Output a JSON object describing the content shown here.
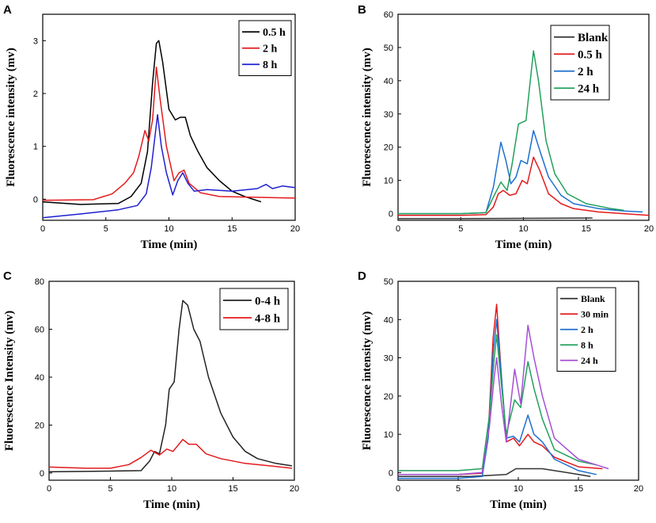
{
  "chart_data": [
    {
      "panel": "A",
      "type": "line",
      "xlabel": "Time (min)",
      "ylabel": "Fluorescence intensity (mv)",
      "xlim": [
        0,
        20
      ],
      "ylim": [
        -0.4,
        3.5
      ],
      "xticks": [
        0,
        5,
        10,
        15,
        20
      ],
      "yticks": [
        0,
        1,
        2,
        3
      ],
      "legend_position": "top-right",
      "series": [
        {
          "name": "0.5 h",
          "color": "#000000",
          "points": [
            [
              0,
              -0.05
            ],
            [
              3,
              -0.1
            ],
            [
              6,
              -0.08
            ],
            [
              7,
              0.05
            ],
            [
              7.8,
              0.3
            ],
            [
              8.3,
              0.9
            ],
            [
              8.7,
              2.2
            ],
            [
              9.0,
              2.95
            ],
            [
              9.2,
              3.0
            ],
            [
              9.5,
              2.6
            ],
            [
              10.0,
              1.7
            ],
            [
              10.5,
              1.5
            ],
            [
              10.9,
              1.55
            ],
            [
              11.3,
              1.55
            ],
            [
              11.7,
              1.2
            ],
            [
              12.3,
              0.9
            ],
            [
              13,
              0.6
            ],
            [
              14,
              0.35
            ],
            [
              15,
              0.15
            ],
            [
              16,
              0.05
            ],
            [
              17.3,
              -0.05
            ]
          ]
        },
        {
          "name": "2 h",
          "color": "#e41a1c",
          "points": [
            [
              0,
              -0.02
            ],
            [
              4,
              -0.01
            ],
            [
              5.5,
              0.1
            ],
            [
              6.5,
              0.3
            ],
            [
              7.2,
              0.5
            ],
            [
              7.6,
              0.8
            ],
            [
              8.1,
              1.3
            ],
            [
              8.4,
              1.1
            ],
            [
              8.7,
              1.5
            ],
            [
              9.0,
              2.5
            ],
            [
              9.3,
              1.9
            ],
            [
              9.8,
              1.0
            ],
            [
              10.4,
              0.35
            ],
            [
              10.8,
              0.5
            ],
            [
              11.2,
              0.55
            ],
            [
              11.6,
              0.3
            ],
            [
              12.5,
              0.12
            ],
            [
              14,
              0.05
            ],
            [
              20,
              0.02
            ]
          ]
        },
        {
          "name": "8 h",
          "color": "#1f1fd0",
          "points": [
            [
              0,
              -0.35
            ],
            [
              3,
              -0.28
            ],
            [
              6,
              -0.2
            ],
            [
              7.5,
              -0.12
            ],
            [
              8.2,
              0.1
            ],
            [
              8.6,
              0.6
            ],
            [
              9.1,
              1.6
            ],
            [
              9.4,
              1.0
            ],
            [
              9.8,
              0.5
            ],
            [
              10.3,
              0.08
            ],
            [
              10.7,
              0.35
            ],
            [
              11.1,
              0.5
            ],
            [
              11.5,
              0.3
            ],
            [
              12,
              0.15
            ],
            [
              13,
              0.18
            ],
            [
              15,
              0.15
            ],
            [
              17,
              0.2
            ],
            [
              17.7,
              0.28
            ],
            [
              18.2,
              0.2
            ],
            [
              19,
              0.25
            ],
            [
              20,
              0.22
            ]
          ]
        }
      ]
    },
    {
      "panel": "B",
      "type": "line",
      "xlabel": "Time (min)",
      "ylabel": "Fluorescence intensity (mv)",
      "xlim": [
        0,
        20
      ],
      "ylim": [
        -2,
        60
      ],
      "xticks": [
        0,
        5,
        10,
        15,
        20
      ],
      "yticks": [
        0,
        10,
        20,
        30,
        40,
        50,
        60
      ],
      "legend_position": "top-left",
      "series": [
        {
          "name": "Blank",
          "color": "#333333",
          "points": [
            [
              0,
              -1.5
            ],
            [
              5,
              -1.5
            ],
            [
              10,
              -1.4
            ],
            [
              15.5,
              -1.3
            ]
          ]
        },
        {
          "name": "0.5 h",
          "color": "#e41a1c",
          "points": [
            [
              0,
              -0.5
            ],
            [
              5,
              -0.5
            ],
            [
              7,
              -0.3
            ],
            [
              7.6,
              2
            ],
            [
              8.0,
              6
            ],
            [
              8.4,
              7
            ],
            [
              8.9,
              5.5
            ],
            [
              9.4,
              6
            ],
            [
              9.9,
              10
            ],
            [
              10.3,
              9
            ],
            [
              10.8,
              17
            ],
            [
              11.3,
              13
            ],
            [
              12,
              6
            ],
            [
              13,
              3
            ],
            [
              14,
              1.5
            ],
            [
              16,
              0.5
            ],
            [
              18,
              0
            ],
            [
              20,
              -0.5
            ]
          ]
        },
        {
          "name": "2 h",
          "color": "#1f6fd0",
          "points": [
            [
              0,
              0
            ],
            [
              5,
              0
            ],
            [
              7,
              0.3
            ],
            [
              7.6,
              8
            ],
            [
              8.2,
              21.5
            ],
            [
              8.6,
              16
            ],
            [
              9.0,
              9
            ],
            [
              9.4,
              11
            ],
            [
              9.8,
              16
            ],
            [
              10.3,
              15
            ],
            [
              10.8,
              25
            ],
            [
              11.3,
              19
            ],
            [
              12,
              11
            ],
            [
              13,
              5.5
            ],
            [
              14,
              3
            ],
            [
              16,
              1.5
            ],
            [
              18,
              0.8
            ],
            [
              19.5,
              0.5
            ]
          ]
        },
        {
          "name": "24 h",
          "color": "#22a05b",
          "points": [
            [
              0,
              0
            ],
            [
              5,
              0
            ],
            [
              7,
              0.3
            ],
            [
              7.6,
              5
            ],
            [
              8.2,
              9.5
            ],
            [
              8.7,
              7
            ],
            [
              9.1,
              15
            ],
            [
              9.6,
              27
            ],
            [
              10.2,
              28
            ],
            [
              10.8,
              49
            ],
            [
              11.2,
              40
            ],
            [
              11.8,
              22
            ],
            [
              12.5,
              12
            ],
            [
              13.5,
              6
            ],
            [
              15,
              3
            ],
            [
              17,
              1.5
            ],
            [
              18,
              1
            ]
          ]
        }
      ]
    },
    {
      "panel": "C",
      "type": "line",
      "xlabel": "Time (min)",
      "ylabel": "Fluorescence Intensity (mv)",
      "xlim": [
        0,
        20
      ],
      "ylim": [
        -3,
        80
      ],
      "xticks": [
        0,
        5,
        10,
        15,
        20
      ],
      "yticks": [
        0,
        20,
        40,
        60,
        80
      ],
      "legend_position": "top-right",
      "series": [
        {
          "name": "0-4 h",
          "color": "#222222",
          "points": [
            [
              0,
              0.5
            ],
            [
              5,
              0.8
            ],
            [
              7.5,
              1
            ],
            [
              8.2,
              5
            ],
            [
              8.6,
              9
            ],
            [
              9.0,
              8
            ],
            [
              9.5,
              20
            ],
            [
              9.8,
              35
            ],
            [
              10.2,
              38
            ],
            [
              10.6,
              60
            ],
            [
              10.9,
              72
            ],
            [
              11.3,
              70
            ],
            [
              11.8,
              60
            ],
            [
              12.3,
              55
            ],
            [
              13,
              40
            ],
            [
              14,
              25
            ],
            [
              15,
              15
            ],
            [
              16,
              9
            ],
            [
              17,
              6
            ],
            [
              18.5,
              4
            ],
            [
              19.8,
              3
            ]
          ]
        },
        {
          "name": "4-8 h",
          "color": "#e41a1c",
          "points": [
            [
              0,
              2.5
            ],
            [
              3,
              2
            ],
            [
              5,
              2
            ],
            [
              6.5,
              3.5
            ],
            [
              7.5,
              6.5
            ],
            [
              8.3,
              9.5
            ],
            [
              9.0,
              7.5
            ],
            [
              9.6,
              10
            ],
            [
              10.1,
              9
            ],
            [
              10.9,
              14
            ],
            [
              11.4,
              12
            ],
            [
              12.0,
              12
            ],
            [
              12.8,
              8
            ],
            [
              14,
              6
            ],
            [
              16,
              4
            ],
            [
              18,
              3
            ],
            [
              19.8,
              2
            ]
          ]
        }
      ]
    },
    {
      "panel": "D",
      "type": "line",
      "xlabel": "Time (min)",
      "ylabel": "Fluorescence intensity (mv)",
      "xlim": [
        0,
        20
      ],
      "ylim": [
        -2,
        50
      ],
      "xticks": [
        0,
        5,
        10,
        15,
        20
      ],
      "yticks": [
        0,
        10,
        20,
        30,
        40,
        50
      ],
      "legend_position": "top-right",
      "series": [
        {
          "name": "Blank",
          "color": "#333333",
          "points": [
            [
              0,
              -1
            ],
            [
              6,
              -1
            ],
            [
              9,
              -0.5
            ],
            [
              9.8,
              1
            ],
            [
              11,
              1
            ],
            [
              12,
              1
            ],
            [
              14,
              0
            ],
            [
              16,
              -1
            ]
          ]
        },
        {
          "name": "30 min",
          "color": "#e41a1c",
          "points": [
            [
              0,
              -0.5
            ],
            [
              5,
              -0.5
            ],
            [
              7,
              -0.2
            ],
            [
              7.5,
              10
            ],
            [
              7.9,
              35
            ],
            [
              8.2,
              44
            ],
            [
              8.6,
              25
            ],
            [
              9.0,
              8
            ],
            [
              9.6,
              9
            ],
            [
              10.1,
              7
            ],
            [
              10.8,
              10
            ],
            [
              11.3,
              8
            ],
            [
              12,
              7
            ],
            [
              13,
              4
            ],
            [
              15,
              1.5
            ],
            [
              17,
              1
            ]
          ]
        },
        {
          "name": "2 h",
          "color": "#1f6fd0",
          "points": [
            [
              0,
              -1.5
            ],
            [
              5,
              -1.5
            ],
            [
              7,
              -1
            ],
            [
              7.5,
              9
            ],
            [
              7.9,
              31
            ],
            [
              8.2,
              40
            ],
            [
              8.6,
              25
            ],
            [
              9.0,
              9
            ],
            [
              9.6,
              9.5
            ],
            [
              10.1,
              8
            ],
            [
              10.8,
              15
            ],
            [
              11.3,
              10
            ],
            [
              12,
              8
            ],
            [
              13,
              3.5
            ],
            [
              15,
              0.5
            ],
            [
              16.5,
              -0.5
            ]
          ]
        },
        {
          "name": "8 h",
          "color": "#22a05b",
          "points": [
            [
              0,
              0.5
            ],
            [
              5,
              0.5
            ],
            [
              7,
              1
            ],
            [
              7.6,
              15
            ],
            [
              8.0,
              30
            ],
            [
              8.2,
              36
            ],
            [
              8.6,
              23
            ],
            [
              9.0,
              10
            ],
            [
              9.7,
              19
            ],
            [
              10.2,
              17
            ],
            [
              10.8,
              29
            ],
            [
              11.3,
              22
            ],
            [
              12,
              14
            ],
            [
              13,
              6
            ],
            [
              15,
              3
            ],
            [
              16.5,
              2
            ]
          ]
        },
        {
          "name": "24 h",
          "color": "#a64fd6",
          "points": [
            [
              0,
              -0.5
            ],
            [
              5,
              -0.5
            ],
            [
              7,
              0
            ],
            [
              7.6,
              12
            ],
            [
              8.0,
              25
            ],
            [
              8.2,
              30
            ],
            [
              8.6,
              18
            ],
            [
              9.0,
              8
            ],
            [
              9.7,
              27
            ],
            [
              10.2,
              18
            ],
            [
              10.8,
              38.5
            ],
            [
              11.3,
              30
            ],
            [
              12,
              20
            ],
            [
              13,
              9
            ],
            [
              15,
              3.5
            ],
            [
              16.5,
              2
            ],
            [
              17.5,
              1
            ]
          ]
        }
      ]
    }
  ]
}
